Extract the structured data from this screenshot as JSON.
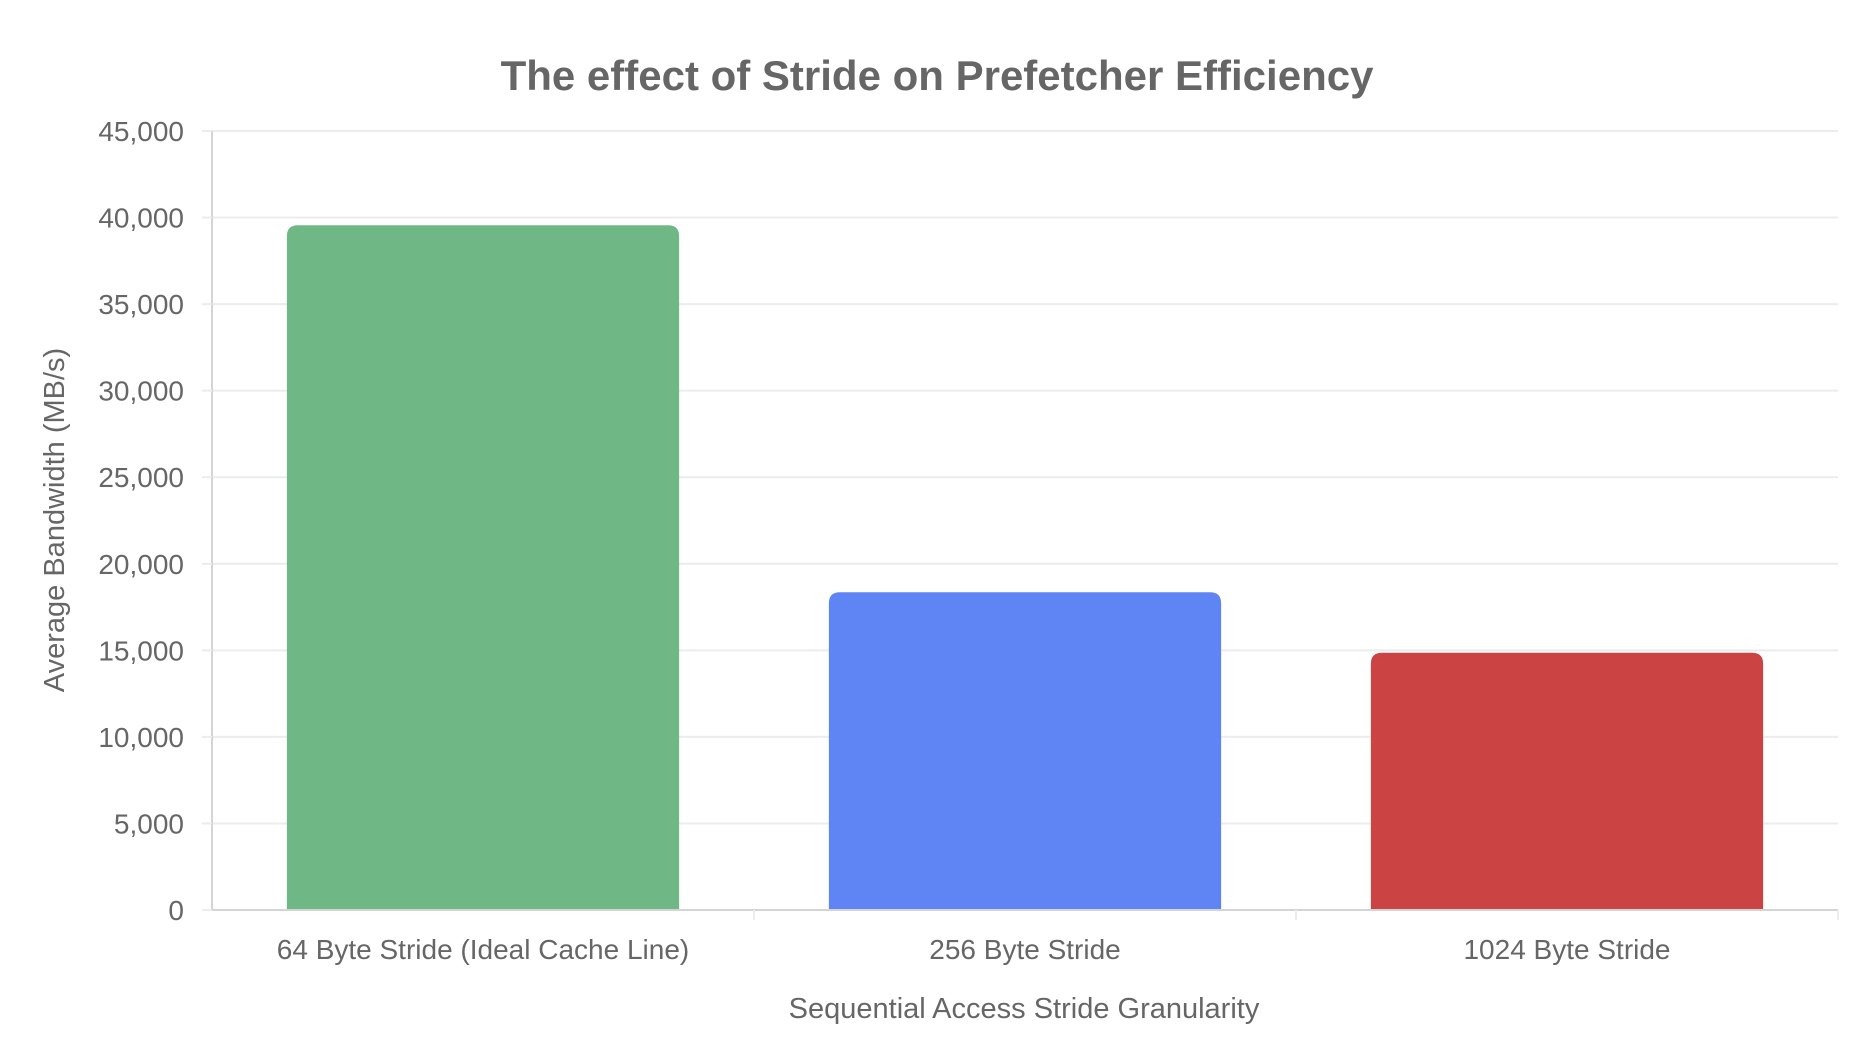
{
  "chart_data": {
    "type": "bar",
    "title": "The effect of Stride on Prefetcher Efficiency",
    "xlabel": "Sequential Access Stride Granularity",
    "ylabel": "Average Bandwidth (MB/s)",
    "categories": [
      "64 Byte Stride (Ideal Cache Line)",
      "256 Byte Stride",
      "1024 Byte Stride"
    ],
    "values": [
      39500,
      18300,
      14800
    ],
    "colors": [
      "#6fb886",
      "#5f84f3",
      "#cc4343"
    ],
    "ylim": [
      0,
      45000
    ],
    "yticks": [
      0,
      5000,
      10000,
      15000,
      20000,
      25000,
      30000,
      35000,
      40000,
      45000
    ],
    "ytick_labels": [
      "0",
      "5,000",
      "10,000",
      "15,000",
      "20,000",
      "25,000",
      "30,000",
      "35,000",
      "40,000",
      "45,000"
    ],
    "grid": true,
    "legend": "none"
  }
}
